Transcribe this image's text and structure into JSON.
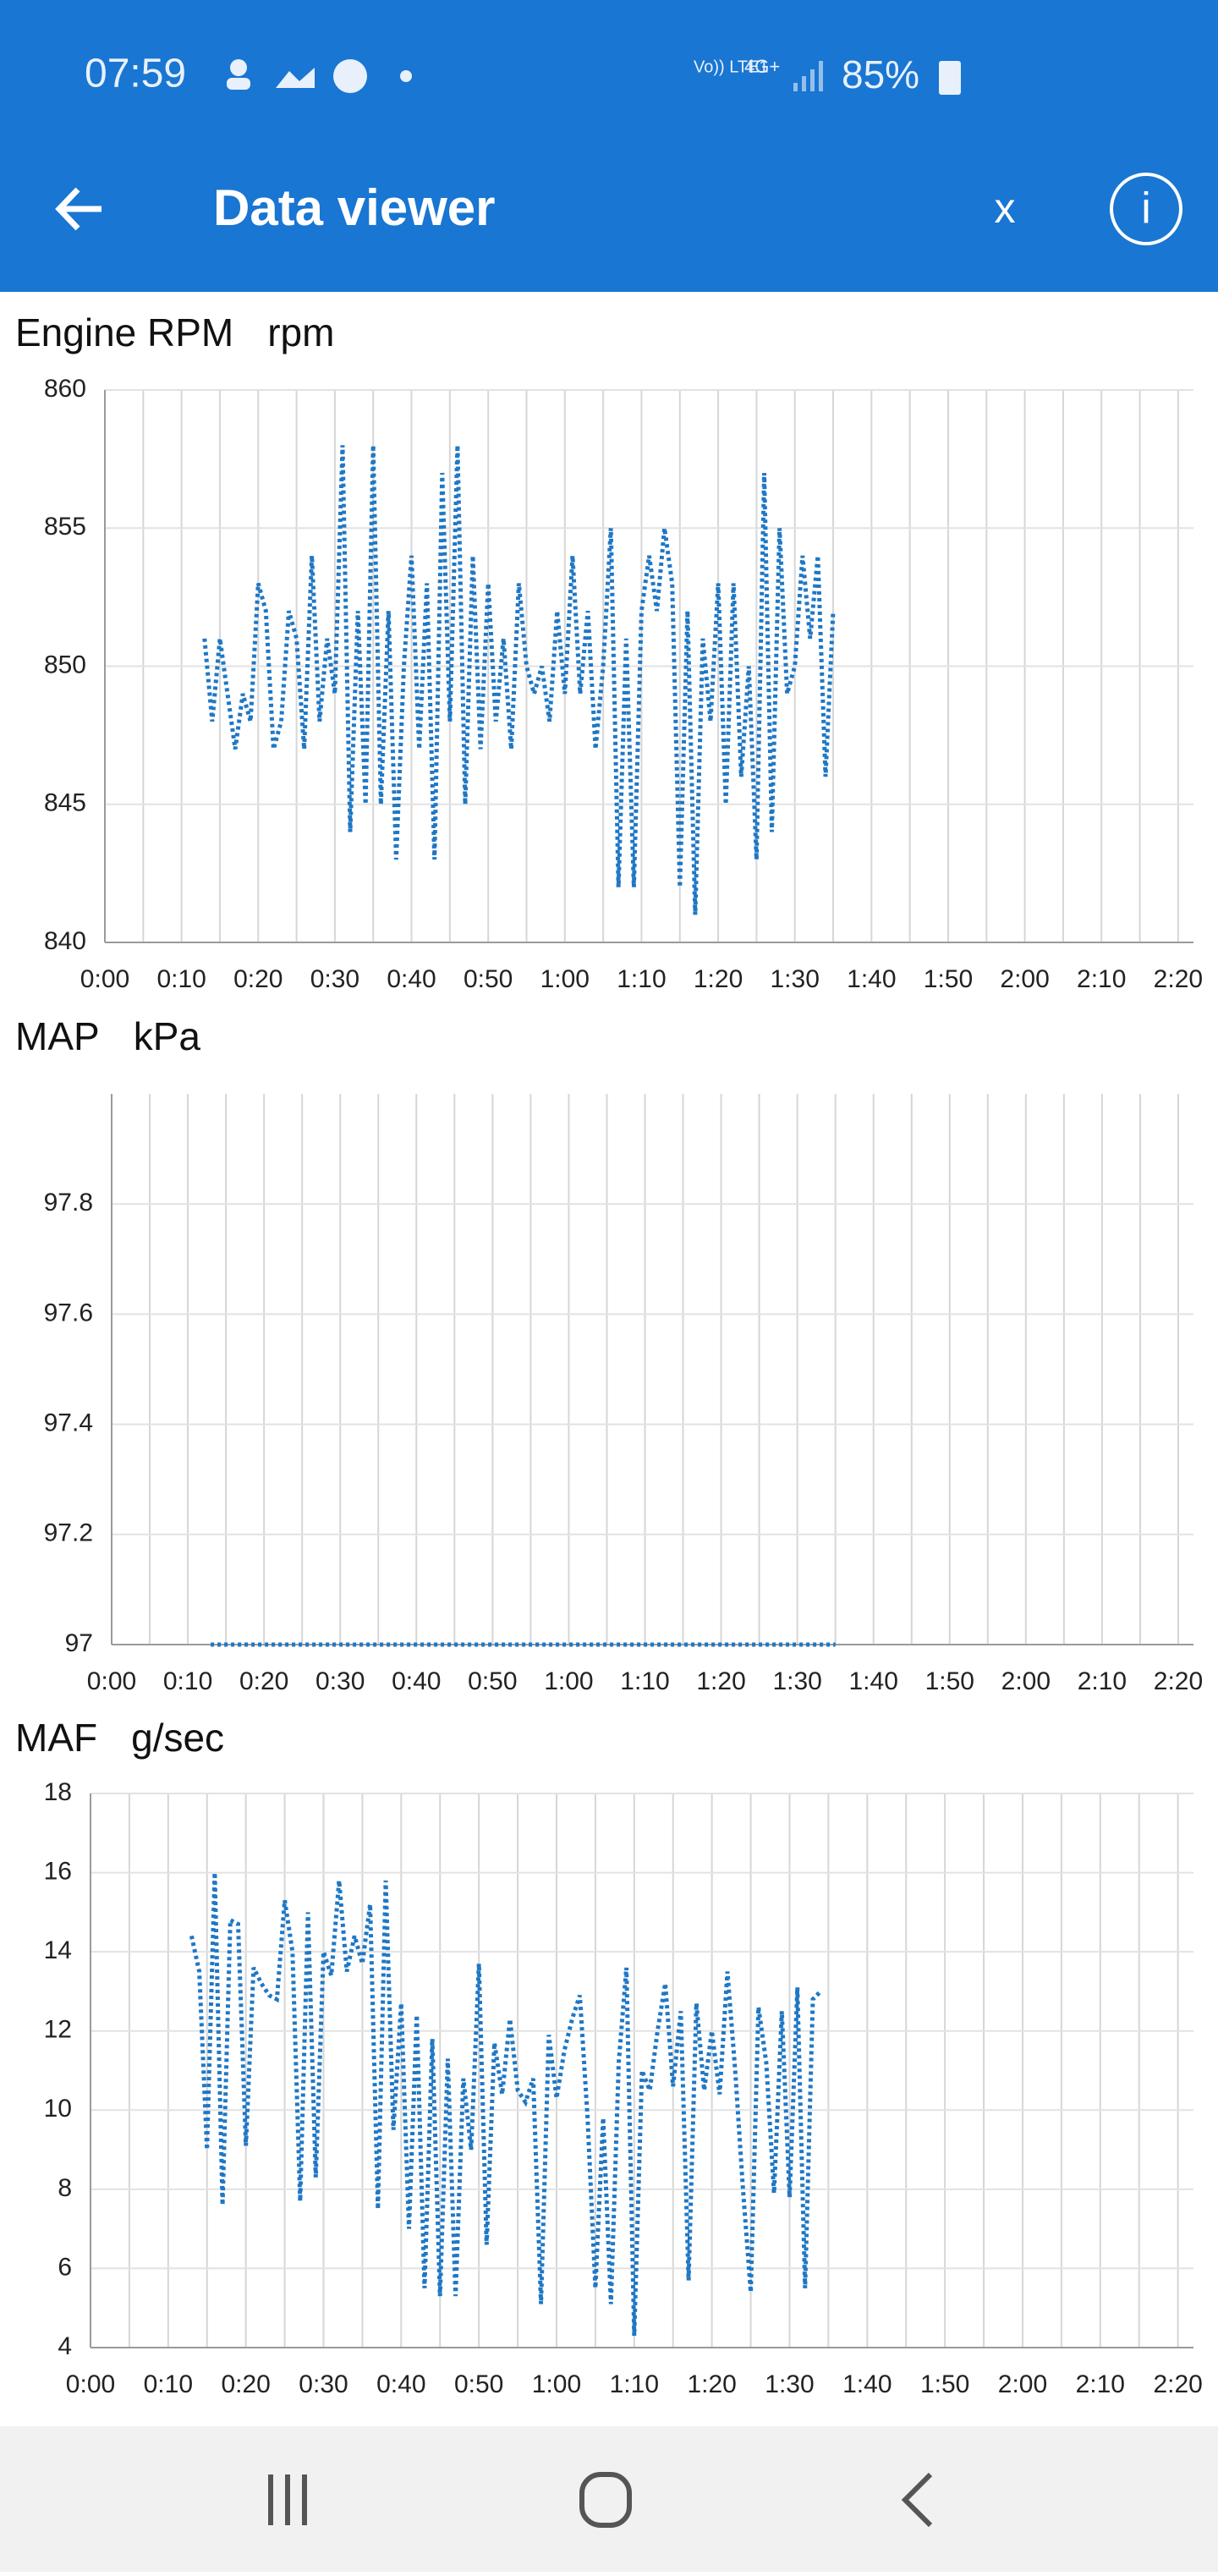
{
  "status_bar": {
    "time": "07:59",
    "network": "Vo)) LTE1",
    "signal": "4G+",
    "battery": "85%"
  },
  "app_bar": {
    "title": "Data viewer",
    "close": "x",
    "info": "i"
  },
  "chart_data": [
    {
      "type": "line",
      "title": "Engine RPM",
      "unit": "rpm",
      "x": [
        13,
        14,
        15,
        16,
        17,
        18,
        19,
        20,
        21,
        22,
        23,
        24,
        25,
        26,
        27,
        28,
        29,
        30,
        31,
        32,
        33,
        34,
        35,
        36,
        37,
        38,
        39,
        40,
        41,
        42,
        43,
        44,
        45,
        46,
        47,
        48,
        49,
        50,
        51,
        52,
        53,
        54,
        55,
        56,
        57,
        58,
        59,
        60,
        61,
        62,
        63,
        64,
        65,
        66,
        67,
        68,
        69,
        70,
        71,
        72,
        73,
        74,
        75,
        76,
        77,
        78,
        79,
        80,
        81,
        82,
        83,
        84,
        85,
        86,
        87,
        88,
        89,
        90,
        91,
        92,
        93,
        94,
        95
      ],
      "series": [
        {
          "color": "#1f77c4",
          "values": [
            851,
            848,
            851,
            849,
            847,
            849,
            848,
            853,
            852,
            847,
            848,
            852,
            851,
            847,
            854,
            848,
            851,
            849,
            858,
            844,
            852,
            845,
            858,
            845,
            852,
            843,
            850,
            854,
            847,
            853,
            843,
            857,
            848,
            858,
            845,
            854,
            847,
            853,
            848,
            851,
            847,
            853,
            850,
            849,
            850,
            848,
            852,
            849,
            854,
            849,
            852,
            847,
            850,
            855,
            842,
            851,
            842,
            852,
            854,
            852,
            855,
            853,
            842,
            852,
            841,
            851,
            848,
            853,
            845,
            853,
            846,
            850,
            843,
            857,
            844,
            855,
            849,
            850,
            854,
            851,
            854,
            846,
            852
          ]
        }
      ],
      "xlim": [
        0,
        142
      ],
      "xticks": [
        {
          "value": 0,
          "label": "0:00"
        },
        {
          "value": 10,
          "label": "0:10"
        },
        {
          "value": 20,
          "label": "0:20"
        },
        {
          "value": 30,
          "label": "0:30"
        },
        {
          "value": 40,
          "label": "0:40"
        },
        {
          "value": 50,
          "label": "0:50"
        },
        {
          "value": 60,
          "label": "1:00"
        },
        {
          "value": 70,
          "label": "1:10"
        },
        {
          "value": 80,
          "label": "1:20"
        },
        {
          "value": 90,
          "label": "1:30"
        },
        {
          "value": 100,
          "label": "1:40"
        },
        {
          "value": 110,
          "label": "1:50"
        },
        {
          "value": 120,
          "label": "2:00"
        },
        {
          "value": 130,
          "label": "2:10"
        },
        {
          "value": 140,
          "label": "2:20"
        }
      ],
      "xminorticks": [
        5,
        15,
        25,
        35,
        45,
        55,
        65,
        75,
        85,
        95,
        105,
        115,
        125,
        135
      ],
      "ylim": [
        840,
        860
      ],
      "yticks": [
        840,
        845,
        850,
        855,
        860
      ],
      "grid": true
    },
    {
      "type": "line",
      "title": "MAP",
      "unit": "kPa",
      "x": [
        13,
        20,
        30,
        40,
        50,
        60,
        70,
        80,
        90,
        95
      ],
      "series": [
        {
          "color": "#1f77c4",
          "values": [
            97,
            97,
            97,
            97,
            97,
            97,
            97,
            97,
            97,
            97
          ]
        }
      ],
      "xlim": [
        0,
        142
      ],
      "xticks": [
        {
          "value": 0,
          "label": "0:00"
        },
        {
          "value": 10,
          "label": "0:10"
        },
        {
          "value": 20,
          "label": "0:20"
        },
        {
          "value": 30,
          "label": "0:30"
        },
        {
          "value": 40,
          "label": "0:40"
        },
        {
          "value": 50,
          "label": "0:50"
        },
        {
          "value": 60,
          "label": "1:00"
        },
        {
          "value": 70,
          "label": "1:10"
        },
        {
          "value": 80,
          "label": "1:20"
        },
        {
          "value": 90,
          "label": "1:30"
        },
        {
          "value": 100,
          "label": "1:40"
        },
        {
          "value": 110,
          "label": "1:50"
        },
        {
          "value": 120,
          "label": "2:00"
        },
        {
          "value": 130,
          "label": "2:10"
        },
        {
          "value": 140,
          "label": "2:20"
        }
      ],
      "xminorticks": [
        5,
        15,
        25,
        35,
        45,
        55,
        65,
        75,
        85,
        95,
        105,
        115,
        125,
        135
      ],
      "ylim": [
        97,
        98
      ],
      "yticks": [
        97,
        97.2,
        97.4,
        97.6,
        97.8
      ],
      "grid": true
    },
    {
      "type": "line",
      "title": "MAF",
      "unit": "g/sec",
      "x": [
        13,
        14,
        15,
        16,
        17,
        18,
        19,
        20,
        21,
        22,
        23,
        24,
        25,
        26,
        27,
        28,
        29,
        30,
        31,
        32,
        33,
        34,
        35,
        36,
        37,
        38,
        39,
        40,
        41,
        42,
        43,
        44,
        45,
        46,
        47,
        48,
        49,
        50,
        51,
        52,
        53,
        54,
        55,
        56,
        57,
        58,
        59,
        60,
        61,
        62,
        63,
        64,
        65,
        66,
        67,
        68,
        69,
        70,
        71,
        72,
        73,
        74,
        75,
        76,
        77,
        78,
        79,
        80,
        81,
        82,
        83,
        84,
        85,
        86,
        87,
        88,
        89,
        90,
        91,
        92,
        93,
        94
      ],
      "series": [
        {
          "color": "#1f77c4",
          "values": [
            14.4,
            13.5,
            9,
            16,
            7.6,
            14.8,
            14.7,
            9.1,
            13.6,
            13.2,
            12.9,
            12.8,
            15.3,
            14,
            7.7,
            15,
            8.3,
            14,
            13.4,
            15.8,
            13.5,
            14.4,
            13.7,
            15.2,
            7.5,
            15.8,
            9.5,
            12.7,
            7,
            12.4,
            5.5,
            11.8,
            5.3,
            11.3,
            5.3,
            10.8,
            9,
            13.7,
            6.6,
            11.7,
            10.4,
            12.3,
            10.5,
            10.2,
            10.8,
            5.1,
            11.9,
            10.3,
            11.5,
            12.3,
            12.9,
            9.8,
            5.5,
            9.8,
            5.1,
            11.2,
            13.6,
            4.3,
            11,
            10.5,
            12,
            13.2,
            10.6,
            12.5,
            5.7,
            12.7,
            10.5,
            12,
            10.4,
            13.5,
            11,
            8,
            5.4,
            12.6,
            11.2,
            7.9,
            12.5,
            7.8,
            13.1,
            5.5,
            12.8,
            13
          ]
        }
      ],
      "xlim": [
        0,
        142
      ],
      "xticks": [
        {
          "value": 0,
          "label": "0:00"
        },
        {
          "value": 10,
          "label": "0:10"
        },
        {
          "value": 20,
          "label": "0:20"
        },
        {
          "value": 30,
          "label": "0:30"
        },
        {
          "value": 40,
          "label": "0:40"
        },
        {
          "value": 50,
          "label": "0:50"
        },
        {
          "value": 60,
          "label": "1:00"
        },
        {
          "value": 70,
          "label": "1:10"
        },
        {
          "value": 80,
          "label": "1:20"
        },
        {
          "value": 90,
          "label": "1:30"
        },
        {
          "value": 100,
          "label": "1:40"
        },
        {
          "value": 110,
          "label": "1:50"
        },
        {
          "value": 120,
          "label": "2:00"
        },
        {
          "value": 130,
          "label": "2:10"
        },
        {
          "value": 140,
          "label": "2:20"
        }
      ],
      "xminorticks": [
        5,
        15,
        25,
        35,
        45,
        55,
        65,
        75,
        85,
        95,
        105,
        115,
        125,
        135
      ],
      "ylim": [
        4,
        18
      ],
      "yticks": [
        4,
        6,
        8,
        10,
        12,
        14,
        16,
        18
      ],
      "grid": true
    }
  ]
}
